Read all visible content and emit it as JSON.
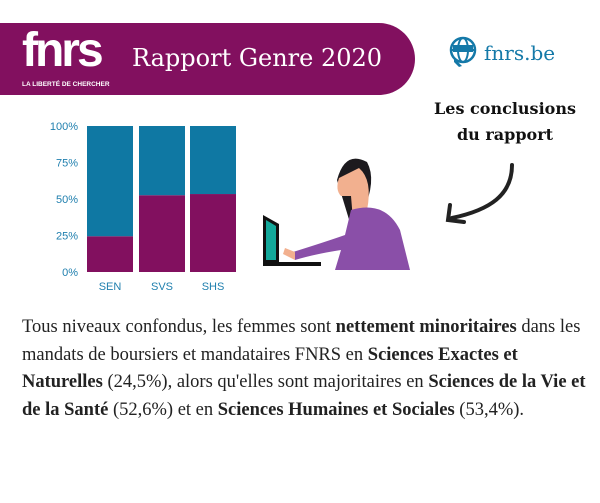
{
  "header": {
    "logo_text": "fnrs",
    "tagline": "LA LIBERTÉ DE CHERCHER",
    "title": "Rapport Genre 2020",
    "website": "fnrs.be",
    "website_icon": "globe-www-icon"
  },
  "callout": {
    "line1": "Les conclusions",
    "line2": "du rapport"
  },
  "colors": {
    "brand_purple": "#82105f",
    "brand_blue": "#0f78a3"
  },
  "chart_data": {
    "type": "bar",
    "stacked": true,
    "categories": [
      "SEN",
      "SVS",
      "SHS"
    ],
    "series": [
      {
        "values": [
          24.5,
          52.6,
          53.4
        ],
        "color": "#82105f"
      },
      {
        "values": [
          75.5,
          47.4,
          46.6
        ],
        "color": "#0f78a3"
      }
    ],
    "yticks": [
      "0%",
      "25%",
      "50%",
      "75%",
      "100%"
    ],
    "ylim": [
      0,
      100
    ]
  },
  "paragraph": [
    {
      "t": "Tous niveaux confondus, les femmes sont ",
      "b": false
    },
    {
      "t": "nettement minoritaires",
      "b": true
    },
    {
      "t": " dans les mandats de boursiers et mandataires FNRS en ",
      "b": false
    },
    {
      "t": "Sciences Exactes et Naturelles",
      "b": true
    },
    {
      "t": " (24,5%), alors qu'elles sont majoritaires en ",
      "b": false
    },
    {
      "t": "Sciences de la Vie et de la Santé",
      "b": true
    },
    {
      "t": " (52,6%) et en ",
      "b": false
    },
    {
      "t": "Sciences Humaines et Sociales",
      "b": true
    },
    {
      "t": " (53,4%).",
      "b": false
    }
  ]
}
